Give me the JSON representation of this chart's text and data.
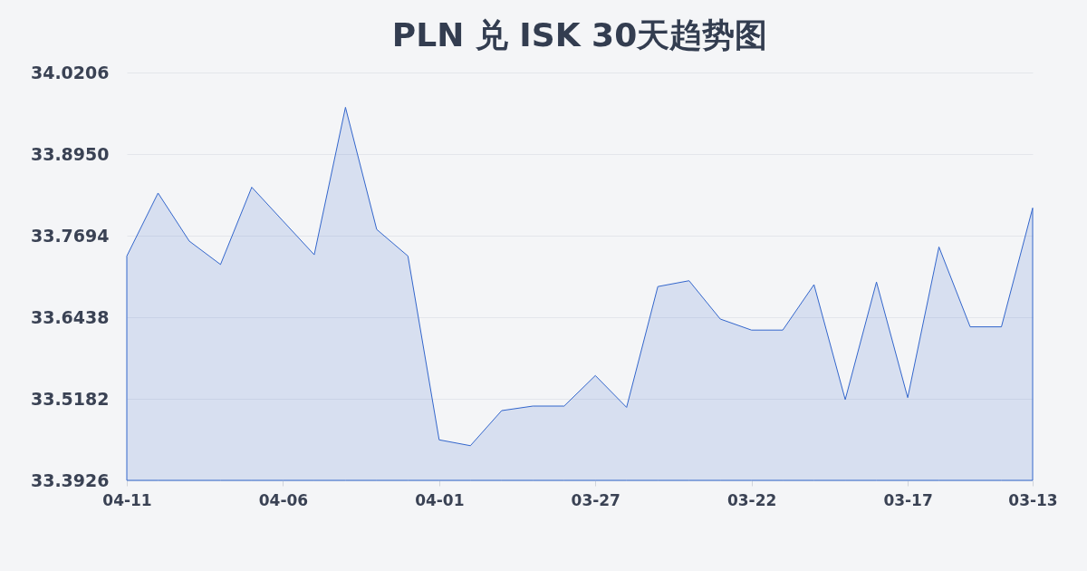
{
  "chart_data": {
    "type": "area",
    "title": "PLN 兑 ISK 30天趋势图",
    "categories": [
      "04-11",
      null,
      null,
      null,
      null,
      "04-06",
      null,
      null,
      null,
      null,
      "04-01",
      null,
      null,
      null,
      null,
      "03-27",
      null,
      null,
      null,
      null,
      "03-22",
      null,
      null,
      null,
      null,
      "03-17",
      null,
      null,
      null,
      "03-13"
    ],
    "series": [
      {
        "color": "#3366cc",
        "values": [
          33.738,
          33.835,
          33.761,
          33.725,
          33.844,
          33.792,
          33.74,
          33.967,
          33.779,
          33.738,
          33.455,
          33.446,
          33.5,
          33.507,
          33.507,
          33.554,
          33.505,
          33.691,
          33.7,
          33.641,
          33.624,
          33.624,
          33.694,
          33.517,
          33.698,
          33.52,
          33.752,
          33.629,
          33.629,
          33.812
        ]
      }
    ],
    "ylim": [
      33.3926,
      34.0206
    ],
    "yticks": [
      33.3926,
      33.5182,
      33.6438,
      33.7694,
      {
        "value": 33.895,
        "label": "33.8950"
      },
      34.0206
    ],
    "grid": "y"
  }
}
